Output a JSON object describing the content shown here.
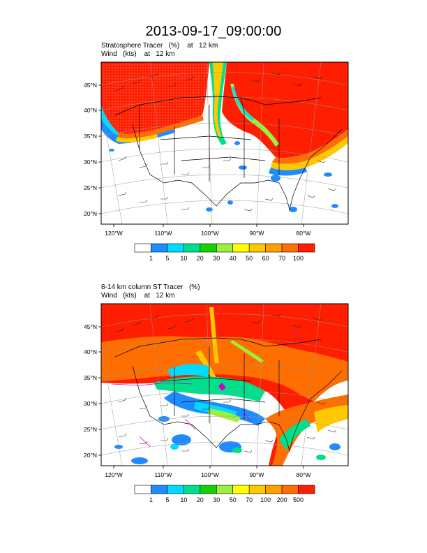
{
  "title": "2013-09-17_09:00:00",
  "panels": [
    {
      "line1": "Stratosphere Tracer   (%)    at   12 km",
      "line2": "Wind   (kts)    at   12 km",
      "lat_labels": [
        "45°N",
        "40°N",
        "35°N",
        "30°N",
        "25°N",
        "20°N"
      ],
      "lon_labels": [
        "120°W",
        "110°W",
        "100°W",
        "90°W",
        "80°W"
      ],
      "colorbar": {
        "colors": [
          "#ffffff",
          "#1e8cff",
          "#00dcff",
          "#00e08c",
          "#14d200",
          "#9cf03c",
          "#ffff00",
          "#ffc800",
          "#ffa000",
          "#ff6e00",
          "#ff1e00"
        ],
        "labels": [
          "1",
          "5",
          "10",
          "20",
          "30",
          "40",
          "50",
          "60",
          "70",
          "100"
        ]
      }
    },
    {
      "line1": "8-14 km column ST Tracer   (%)",
      "line2": "Wind   (kts)    at   12 km",
      "lat_labels": [
        "45°N",
        "40°N",
        "35°N",
        "30°N",
        "25°N",
        "20°N"
      ],
      "lon_labels": [
        "120°W",
        "110°W",
        "100°W",
        "90°W",
        "80°W"
      ],
      "colorbar": {
        "colors": [
          "#ffffff",
          "#1e8cff",
          "#00dcff",
          "#00e08c",
          "#14d200",
          "#9cf03c",
          "#ffff00",
          "#ffc800",
          "#ffa000",
          "#ff6e00",
          "#ff1e00"
        ],
        "labels": [
          "1",
          "5",
          "10",
          "20",
          "30",
          "50",
          "70",
          "100",
          "200",
          "500"
        ]
      }
    }
  ]
}
